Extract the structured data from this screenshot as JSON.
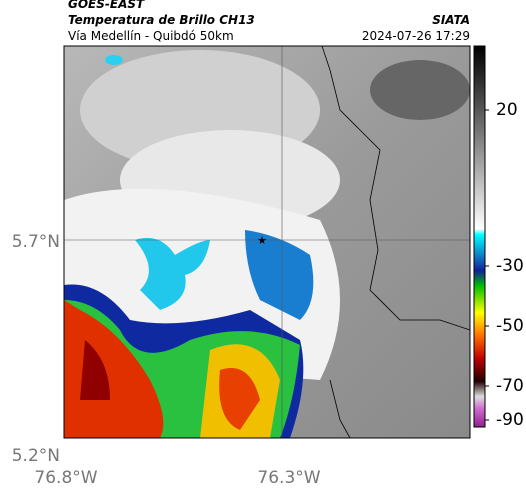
{
  "header": {
    "satellite": "GOES-EAST",
    "product": "Temperatura de Brillo CH13",
    "region": "Vía Medellín - Quibdó 50km",
    "source": "SIATA",
    "datetime": "2024-07-26 17:29"
  },
  "map": {
    "lat_ticks": [
      "5.7°N",
      "5.2°N"
    ],
    "lon_ticks": [
      "76.8°W",
      "76.3°W"
    ]
  },
  "colorbar": {
    "ticks": [
      20,
      -30,
      -50,
      -70,
      -90
    ]
  }
}
